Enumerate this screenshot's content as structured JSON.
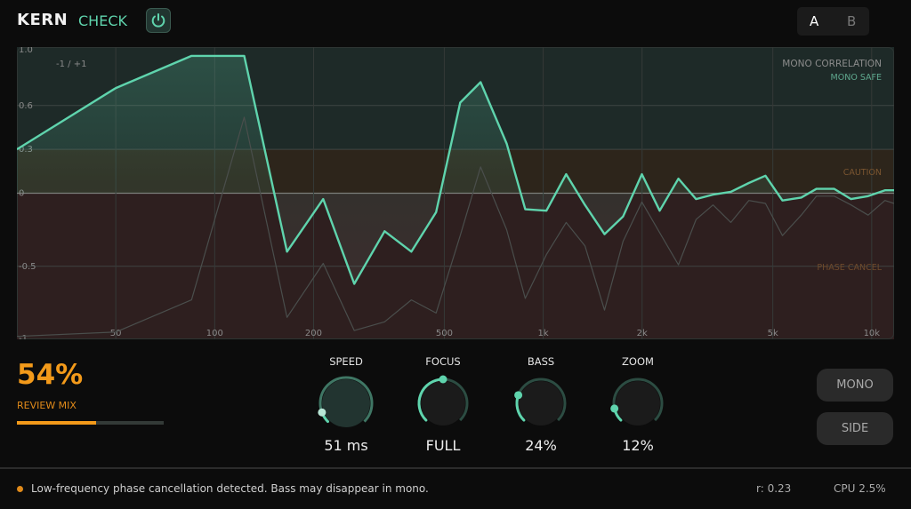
{
  "header": {
    "brand": "KERN",
    "product": "CHECK",
    "power_icon": "power-icon",
    "ab": {
      "a": "A",
      "b": "B",
      "selected": "A"
    }
  },
  "colors": {
    "accent": "#5fd4ad",
    "warning": "#f39a1a",
    "safe_zone": "#1e2a28",
    "caution_zone": "#2d251b",
    "cancel_zone": "#2e1f1f",
    "secondary_line": "#4a4e4c"
  },
  "chart_data": {
    "type": "line",
    "title": "MONO CORRELATION",
    "corner_label": "-1 / +1",
    "zones": [
      {
        "label": "MONO SAFE",
        "from": 0.3,
        "to": 1.0,
        "color": "#5fa88e"
      },
      {
        "label": "CAUTION",
        "from": 0.0,
        "to": 0.3,
        "color": "#7a5530"
      },
      {
        "label": "PHASE CANCEL",
        "from": -1.0,
        "to": 0.0,
        "color": "#6e4a2c"
      }
    ],
    "x_scale": "log",
    "xlim": [
      25,
      11700
    ],
    "ylim": [
      -1,
      1
    ],
    "x_ticks": [
      {
        "v": 50,
        "label": "50"
      },
      {
        "v": 100,
        "label": "100"
      },
      {
        "v": 200,
        "label": "200"
      },
      {
        "v": 500,
        "label": "500"
      },
      {
        "v": 1000,
        "label": "1k"
      },
      {
        "v": 2000,
        "label": "2k"
      },
      {
        "v": 5000,
        "label": "5k"
      },
      {
        "v": 10000,
        "label": "10k"
      }
    ],
    "y_ticks": [
      {
        "v": 1.0,
        "label": "1.0"
      },
      {
        "v": 0.6,
        "label": "0.6"
      },
      {
        "v": 0.3,
        "label": "0.3"
      },
      {
        "v": 0,
        "label": "0"
      },
      {
        "v": -0.5,
        "label": "-0.5"
      },
      {
        "v": -1,
        "label": "-1"
      }
    ],
    "grid": true,
    "x": [
      25,
      50,
      85,
      123,
      166,
      214,
      266,
      329,
      397,
      472,
      559,
      645,
      774,
      882,
      1023,
      1175,
      1340,
      1537,
      1750,
      1997,
      2262,
      2580,
      2920,
      3290,
      3725,
      4225,
      4750,
      5350,
      6100,
      6790,
      7690,
      8650,
      9750,
      10970,
      11700
    ],
    "series": [
      {
        "color": "#5fd4ad",
        "values": [
          0.3,
          0.72,
          0.94,
          0.94,
          -0.4,
          -0.04,
          -0.62,
          -0.26,
          -0.4,
          -0.13,
          0.62,
          0.76,
          0.34,
          -0.11,
          -0.12,
          0.13,
          -0.08,
          -0.28,
          -0.16,
          0.13,
          -0.12,
          0.1,
          -0.04,
          -0.01,
          0.01,
          0.07,
          0.12,
          -0.05,
          -0.03,
          0.03,
          0.03,
          -0.04,
          -0.02,
          0.02,
          0.02
        ]
      },
      {
        "color": "#4a4e4c",
        "values": [
          -0.98,
          -0.95,
          -0.73,
          0.52,
          -0.85,
          -0.48,
          -0.94,
          -0.88,
          -0.73,
          -0.82,
          -0.29,
          0.18,
          -0.25,
          -0.72,
          -0.42,
          -0.2,
          -0.36,
          -0.8,
          -0.33,
          -0.06,
          -0.27,
          -0.49,
          -0.18,
          -0.08,
          -0.2,
          -0.05,
          -0.07,
          -0.29,
          -0.15,
          -0.02,
          -0.02,
          -0.08,
          -0.15,
          -0.05,
          -0.07
        ]
      }
    ]
  },
  "review_mix": {
    "value": "54%",
    "label": "REVIEW MIX",
    "level": 0.54
  },
  "knobs": [
    {
      "label": "SPEED",
      "value": "51 ms",
      "level": 0.09,
      "hover": true
    },
    {
      "label": "FOCUS",
      "value": "FULL",
      "level": 0.5,
      "hover": false
    },
    {
      "label": "BASS",
      "value": "24%",
      "level": 0.24,
      "hover": false
    },
    {
      "label": "ZOOM",
      "value": "12%",
      "level": 0.12,
      "hover": false
    }
  ],
  "buttons": {
    "mono": "MONO",
    "side": "SIDE"
  },
  "status": {
    "message": "Low-frequency phase cancellation detected. Bass may disappear in mono.",
    "correlation": "r: 0.23",
    "cpu": "CPU  2.5%"
  }
}
